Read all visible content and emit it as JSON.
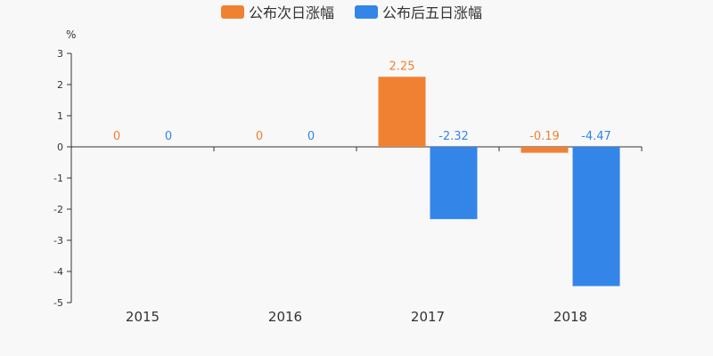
{
  "chart_data": {
    "type": "bar",
    "categories": [
      "2015",
      "2016",
      "2017",
      "2018"
    ],
    "series": [
      {
        "name": "公布次日涨幅",
        "color": "#f08133",
        "values": [
          0,
          0,
          2.25,
          -0.19
        ],
        "labels": [
          "0",
          "0",
          "2.25",
          "-0.19"
        ]
      },
      {
        "name": "公布后五日涨幅",
        "color": "#3385e8",
        "values": [
          0,
          0,
          -2.32,
          -4.47
        ],
        "labels": [
          "0",
          "0",
          "-2.32",
          "-4.47"
        ]
      }
    ],
    "ylim": [
      -5,
      3
    ],
    "yticks": [
      "3",
      "2",
      "1",
      "0",
      "-1",
      "-2",
      "-3",
      "-4",
      "-5"
    ],
    "ylabel": "%",
    "legend_position": "top-center",
    "grid": false
  }
}
